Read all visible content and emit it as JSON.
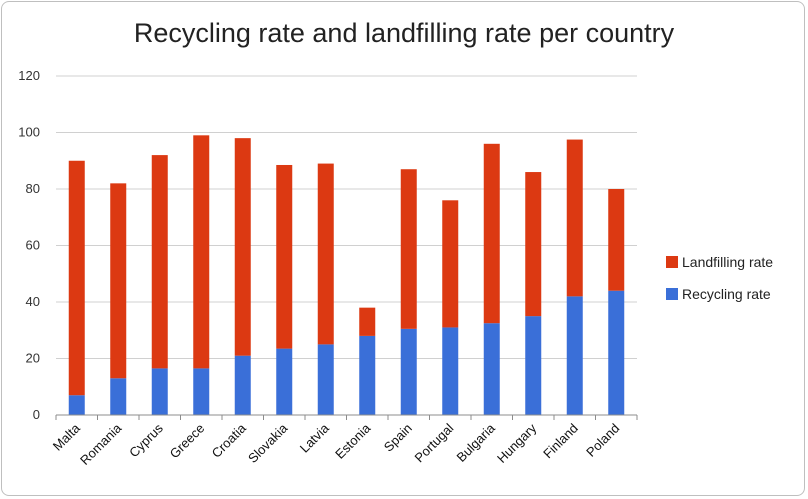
{
  "chart_data": {
    "type": "bar",
    "stacked": true,
    "title": "Recycling rate and landfilling rate per country",
    "xlabel": "",
    "ylabel": "",
    "ylim": [
      0,
      120
    ],
    "yticks": [
      0,
      20,
      40,
      60,
      80,
      100,
      120
    ],
    "grid": true,
    "legend_position": "right",
    "categories": [
      "Malta",
      "Romania",
      "Cyprus",
      "Greece",
      "Croatia",
      "Slovakia",
      "Latvia",
      "Estonia",
      "Spain",
      "Portugal",
      "Bulgaria",
      "Hungary",
      "Finland",
      "Poland"
    ],
    "series": [
      {
        "name": "Recycling rate",
        "color": "#3a6fd8",
        "values": [
          7,
          13,
          16.5,
          16.5,
          21,
          23.5,
          25,
          28,
          30.5,
          31,
          32.5,
          35,
          42,
          44
        ]
      },
      {
        "name": "Landfilling rate",
        "color": "#dc3912",
        "values": [
          83,
          69,
          75.5,
          82.5,
          77,
          65,
          64,
          10,
          56.5,
          45,
          63.5,
          51,
          55.5,
          36
        ]
      }
    ]
  }
}
